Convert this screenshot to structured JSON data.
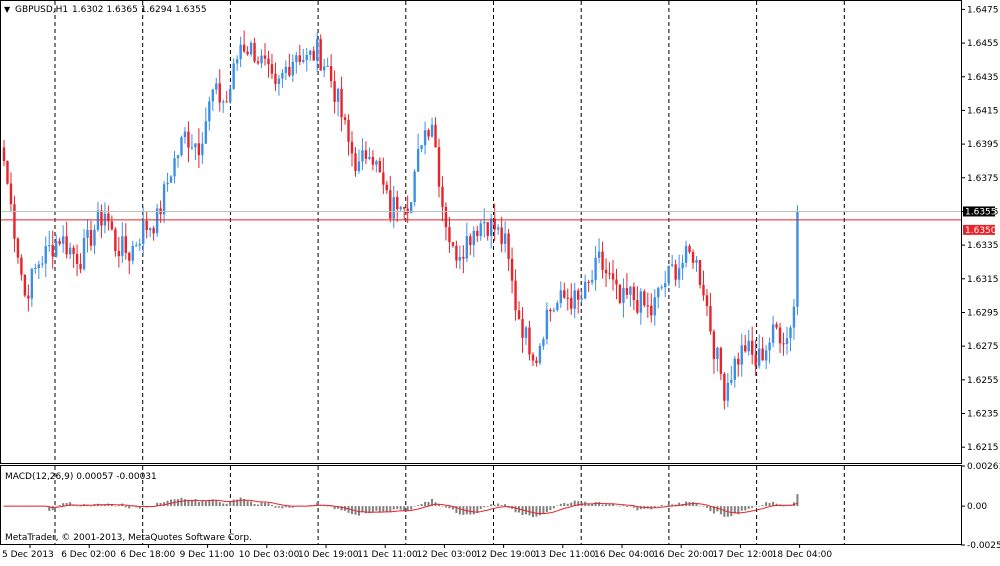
{
  "main_title": {
    "arrow": "▼",
    "symbol": "GBPUSD,H1",
    "ohlc": "1.6302 1.6365 1.6294 1.6355"
  },
  "macd_title": "MACD(12,26,9) 0.00057 -0.00031",
  "copyright": "MetaTrader, © 2001-2013, MetaQuotes Software Corp.",
  "colors": {
    "bull": "#3d8fe6",
    "bear": "#e8232a",
    "price_line": "#e8232a",
    "histogram": "#808080",
    "signal": "#e8232a",
    "grid": "#000000",
    "bid_line": "#c0c0c0"
  },
  "price_labels": {
    "bid": "1.6355",
    "ask_line": "1.6350"
  },
  "chart_data": [
    {
      "type": "candlestick",
      "title": "GBPUSD,H1",
      "ylim": [
        1.6205,
        1.648
      ],
      "y_ticks": [
        "1.6475",
        "1.6455",
        "1.6435",
        "1.6415",
        "1.6395",
        "1.6375",
        "1.6355",
        "1.6335",
        "1.6315",
        "1.6295",
        "1.6275",
        "1.6255",
        "1.6235",
        "1.6215"
      ],
      "x_ticks": [
        "5 Dec 2013",
        "6 Dec 02:00",
        "6 Dec 18:00",
        "9 Dec 11:00",
        "10 Dec 03:00",
        "10 Dec 19:00",
        "11 Dec 11:00",
        "12 Dec 03:00",
        "12 Dec 19:00",
        "13 Dec 11:00",
        "16 Dec 04:00",
        "16 Dec 20:00",
        "17 Dec 12:00",
        "18 Dec 04:00"
      ],
      "vertical_grid_count": 10,
      "horizontal_lines": [
        1.6355,
        1.635
      ],
      "anchors": [
        [
          0,
          1.6385
        ],
        [
          3,
          1.6345
        ],
        [
          6,
          1.6305
        ],
        [
          10,
          1.6325
        ],
        [
          16,
          1.634
        ],
        [
          20,
          1.633
        ],
        [
          22,
          1.6328
        ],
        [
          26,
          1.6345
        ],
        [
          29,
          1.6355
        ],
        [
          32,
          1.6335
        ],
        [
          36,
          1.633
        ],
        [
          40,
          1.6345
        ],
        [
          44,
          1.635
        ],
        [
          48,
          1.638
        ],
        [
          52,
          1.64
        ],
        [
          56,
          1.6395
        ],
        [
          60,
          1.6425
        ],
        [
          64,
          1.642
        ],
        [
          68,
          1.6455
        ],
        [
          72,
          1.645
        ],
        [
          75,
          1.644
        ],
        [
          78,
          1.6425
        ],
        [
          81,
          1.644
        ],
        [
          84,
          1.645
        ],
        [
          87,
          1.6445
        ],
        [
          90,
          1.645
        ],
        [
          93,
          1.644
        ],
        [
          96,
          1.642
        ],
        [
          99,
          1.6395
        ],
        [
          102,
          1.638
        ],
        [
          105,
          1.6395
        ],
        [
          108,
          1.6375
        ],
        [
          111,
          1.6355
        ],
        [
          114,
          1.6365
        ],
        [
          117,
          1.636
        ],
        [
          120,
          1.64
        ],
        [
          123,
          1.641
        ],
        [
          126,
          1.636
        ],
        [
          129,
          1.633
        ],
        [
          132,
          1.6335
        ],
        [
          135,
          1.6345
        ],
        [
          138,
          1.635
        ],
        [
          141,
          1.6345
        ],
        [
          144,
          1.6335
        ],
        [
          147,
          1.63
        ],
        [
          150,
          1.628
        ],
        [
          153,
          1.627
        ],
        [
          156,
          1.6295
        ],
        [
          159,
          1.63
        ],
        [
          162,
          1.6305
        ],
        [
          165,
          1.63
        ],
        [
          168,
          1.631
        ],
        [
          171,
          1.6325
        ],
        [
          174,
          1.6315
        ],
        [
          177,
          1.63
        ],
        [
          180,
          1.6305
        ],
        [
          183,
          1.63
        ],
        [
          186,
          1.6295
        ],
        [
          189,
          1.631
        ],
        [
          192,
          1.632
        ],
        [
          195,
          1.6325
        ],
        [
          198,
          1.633
        ],
        [
          201,
          1.631
        ],
        [
          204,
          1.6275
        ],
        [
          207,
          1.625
        ],
        [
          210,
          1.6265
        ],
        [
          213,
          1.6275
        ],
        [
          216,
          1.6265
        ],
        [
          219,
          1.6275
        ],
        [
          222,
          1.6285
        ],
        [
          225,
          1.628
        ],
        [
          227,
          1.63
        ],
        [
          228,
          1.6355
        ]
      ]
    },
    {
      "type": "macd",
      "title": "MACD(12,26,9) 0.00057 -0.00031",
      "ylim": [
        -0.00253,
        0.00261
      ],
      "y_ticks": [
        "0.00261",
        "0.00",
        "-0.00253"
      ],
      "series": [
        {
          "name": "MACD(12,26,9)",
          "kind": "histogram"
        },
        {
          "name": "signal",
          "kind": "line"
        }
      ]
    }
  ]
}
